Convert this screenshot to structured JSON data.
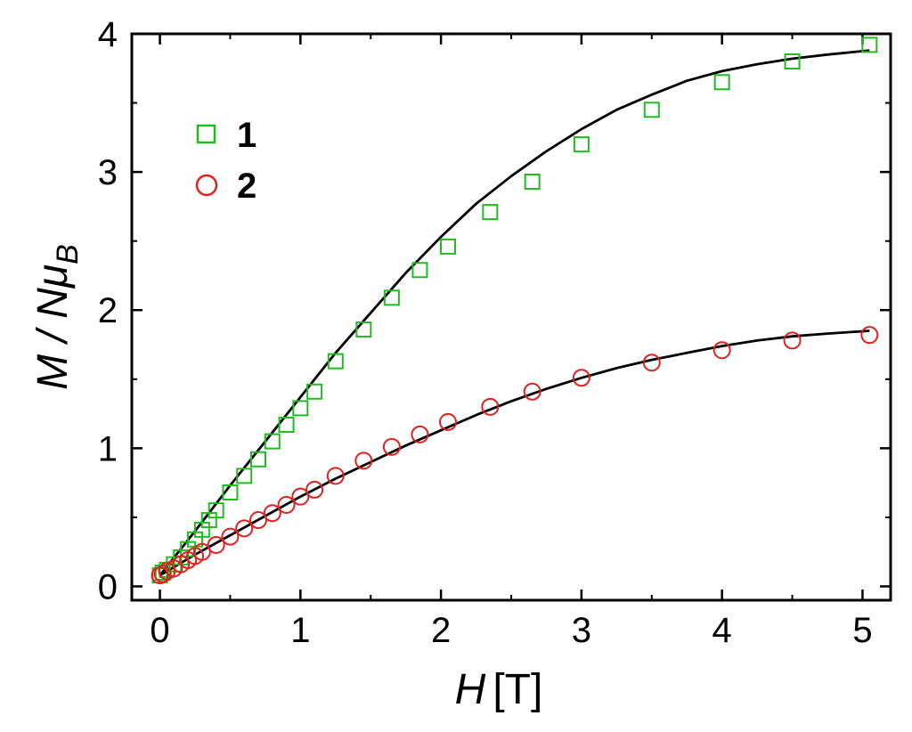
{
  "chart_data": {
    "type": "scatter",
    "xlabel_var": "H",
    "xlabel_unit": "[T]",
    "ylabel": "M / Nμ",
    "ylabel_sub": "B",
    "xlim": [
      -0.2,
      5.2
    ],
    "ylim": [
      -0.1,
      4.0
    ],
    "xticks": [
      0,
      1,
      2,
      3,
      4,
      5
    ],
    "yticks": [
      0,
      1,
      2,
      3,
      4
    ],
    "grid": false,
    "legend_position": "top-left",
    "series": [
      {
        "name": "1",
        "marker": "square",
        "color": "#22bb22",
        "x": [
          0,
          0.02,
          0.05,
          0.1,
          0.15,
          0.2,
          0.25,
          0.3,
          0.35,
          0.4,
          0.5,
          0.6,
          0.7,
          0.8,
          0.9,
          1.0,
          1.1,
          1.25,
          1.45,
          1.65,
          1.85,
          2.05,
          2.35,
          2.65,
          3.0,
          3.5,
          4.0,
          4.5,
          5.05
        ],
        "y": [
          0.08,
          0.1,
          0.12,
          0.16,
          0.21,
          0.27,
          0.34,
          0.41,
          0.48,
          0.55,
          0.68,
          0.8,
          0.92,
          1.05,
          1.17,
          1.29,
          1.41,
          1.63,
          1.86,
          2.09,
          2.29,
          2.46,
          2.71,
          2.93,
          3.2,
          3.45,
          3.65,
          3.8,
          3.92
        ]
      },
      {
        "name": "2",
        "marker": "circle",
        "color": "#dd2222",
        "x": [
          0,
          0.02,
          0.05,
          0.1,
          0.15,
          0.2,
          0.25,
          0.3,
          0.4,
          0.5,
          0.6,
          0.7,
          0.8,
          0.9,
          1.0,
          1.1,
          1.25,
          1.45,
          1.65,
          1.85,
          2.05,
          2.35,
          2.65,
          3.0,
          3.5,
          4.0,
          4.5,
          5.05
        ],
        "y": [
          0.08,
          0.09,
          0.11,
          0.13,
          0.16,
          0.19,
          0.22,
          0.25,
          0.3,
          0.36,
          0.42,
          0.48,
          0.53,
          0.59,
          0.65,
          0.7,
          0.8,
          0.91,
          1.01,
          1.1,
          1.19,
          1.3,
          1.41,
          1.51,
          1.62,
          1.71,
          1.78,
          1.82
        ]
      }
    ],
    "fits": [
      {
        "color": "#000000",
        "x": [
          0,
          0.25,
          0.5,
          0.75,
          1.0,
          1.25,
          1.5,
          1.75,
          2.0,
          2.25,
          2.5,
          2.75,
          3.0,
          3.25,
          3.5,
          3.75,
          4.0,
          4.25,
          4.5,
          4.75,
          5.05
        ],
        "y": [
          0.08,
          0.4,
          0.73,
          1.05,
          1.37,
          1.69,
          1.98,
          2.27,
          2.53,
          2.77,
          2.97,
          3.15,
          3.31,
          3.45,
          3.56,
          3.66,
          3.73,
          3.78,
          3.82,
          3.85,
          3.88
        ]
      },
      {
        "color": "#000000",
        "x": [
          0,
          0.25,
          0.5,
          0.75,
          1.0,
          1.25,
          1.5,
          1.75,
          2.0,
          2.25,
          2.5,
          2.75,
          3.0,
          3.25,
          3.5,
          3.75,
          4.0,
          4.25,
          4.5,
          4.75,
          5.05
        ],
        "y": [
          0.08,
          0.23,
          0.37,
          0.51,
          0.65,
          0.78,
          0.9,
          1.02,
          1.13,
          1.24,
          1.34,
          1.43,
          1.51,
          1.58,
          1.64,
          1.69,
          1.74,
          1.78,
          1.81,
          1.83,
          1.85
        ]
      }
    ]
  }
}
